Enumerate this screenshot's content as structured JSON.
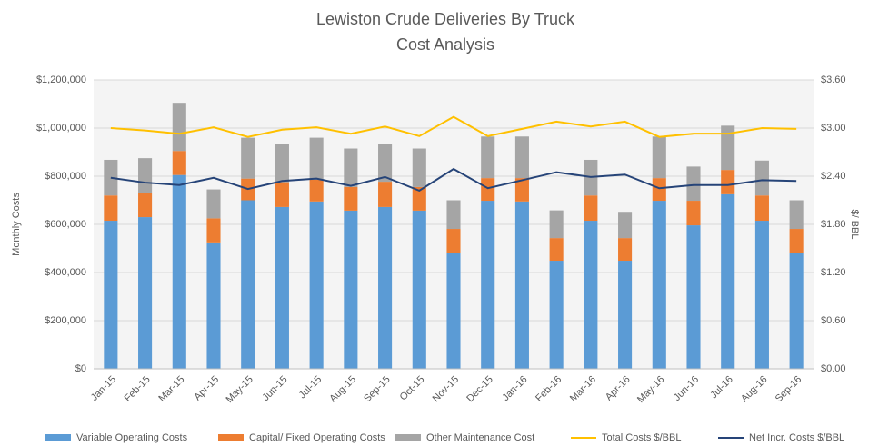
{
  "chart_data": {
    "type": "bar",
    "title": "Lewiston Crude Deliveries By Truck",
    "subtitle": "Cost Analysis",
    "ylabel": "Monthly Costs",
    "y2label": "$/ BBL",
    "categories": [
      "Jan-15",
      "Feb-15",
      "Mar-15",
      "Apr-15",
      "May-15",
      "Jun-15",
      "Jul-15",
      "Aug-15",
      "Sep-15",
      "Oct-15",
      "Nov-15",
      "Dec-15",
      "Jan-16",
      "Feb-16",
      "Mar-16",
      "Apr-16",
      "May-16",
      "Jun-16",
      "Jul-16",
      "Aug-16",
      "Sep-16"
    ],
    "series": [
      {
        "name": "Variable Operating Costs",
        "color": "#5b9bd5",
        "values": [
          615000,
          630000,
          805000,
          525000,
          700000,
          672000,
          695000,
          657000,
          672000,
          657000,
          483000,
          698000,
          695000,
          449000,
          615000,
          449000,
          698000,
          596000,
          725000,
          615000,
          483000
        ]
      },
      {
        "name": "Capital/ Fixed Operating Costs",
        "color": "#ed7d31",
        "values": [
          105000,
          100000,
          100000,
          100000,
          90000,
          103000,
          90000,
          98000,
          105000,
          98000,
          98000,
          94000,
          97000,
          94000,
          105000,
          94000,
          94000,
          102000,
          101000,
          105000,
          98000
        ]
      },
      {
        "name": "Other Maintenance Cost",
        "color": "#a5a5a5",
        "values": [
          148000,
          145000,
          200000,
          120000,
          170000,
          160000,
          175000,
          160000,
          158000,
          160000,
          119000,
          173000,
          173000,
          115000,
          148000,
          109000,
          173000,
          142000,
          184000,
          145000,
          119000
        ]
      },
      {
        "name": "Total Costs $/BBL",
        "color": "#ffc000",
        "type": "line",
        "axis": "y2",
        "values": [
          3.0,
          2.97,
          2.93,
          3.01,
          2.89,
          2.98,
          3.01,
          2.93,
          3.02,
          2.9,
          3.14,
          2.9,
          2.99,
          3.08,
          3.02,
          3.08,
          2.89,
          2.93,
          2.93,
          3.0,
          2.99
        ]
      },
      {
        "name": "Net Incr. Costs $/BBL",
        "color": "#264478",
        "type": "line",
        "axis": "y2",
        "values": [
          2.38,
          2.32,
          2.29,
          2.38,
          2.24,
          2.34,
          2.37,
          2.28,
          2.39,
          2.22,
          2.49,
          2.25,
          2.35,
          2.45,
          2.39,
          2.42,
          2.25,
          2.29,
          2.29,
          2.35,
          2.34
        ]
      }
    ],
    "ylim": [
      0,
      1200000
    ],
    "yticks": [
      {
        "value": 0,
        "label": "$0"
      },
      {
        "value": 200000,
        "label": "$200,000"
      },
      {
        "value": 400000,
        "label": "$400,000"
      },
      {
        "value": 600000,
        "label": "$600,000"
      },
      {
        "value": 800000,
        "label": "$800,000"
      },
      {
        "value": 1000000,
        "label": "$1,000,000"
      },
      {
        "value": 1200000,
        "label": "$1,200,000"
      }
    ],
    "y2lim": [
      0,
      3.6
    ],
    "y2ticks": [
      {
        "value": 0,
        "label": "$0.00"
      },
      {
        "value": 0.6,
        "label": "$0.60"
      },
      {
        "value": 1.2,
        "label": "$1.20"
      },
      {
        "value": 1.8,
        "label": "$1.80"
      },
      {
        "value": 2.4,
        "label": "$2.40"
      },
      {
        "value": 3.0,
        "label": "$3.00"
      },
      {
        "value": 3.6,
        "label": "$3.60"
      }
    ],
    "grid": true,
    "legend": "bottom"
  }
}
